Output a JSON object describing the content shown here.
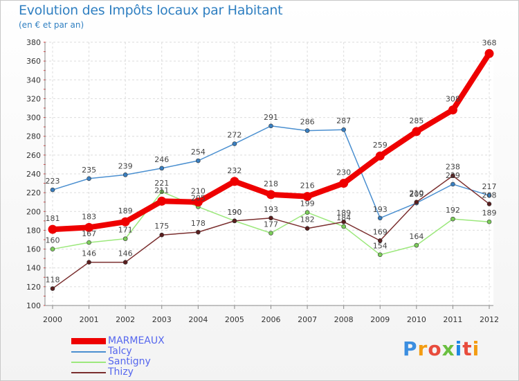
{
  "chart_data": {
    "type": "line",
    "title": "Evolution des Impôts locaux par Habitant",
    "subtitle": "(en € et par an)",
    "categories": [
      "2000",
      "2001",
      "2002",
      "2003",
      "2004",
      "2005",
      "2006",
      "2007",
      "2008",
      "2009",
      "2010",
      "2011",
      "2012"
    ],
    "ylim": [
      100,
      380
    ],
    "yticks": [
      100,
      120,
      140,
      160,
      180,
      200,
      220,
      240,
      260,
      280,
      300,
      320,
      340,
      360,
      380
    ],
    "grid": true,
    "legend_position": "bottom-left",
    "series": [
      {
        "name": "Talcy",
        "color": "#4a8fd0",
        "marker": "#3a7fc0",
        "values": [
          223,
          235,
          239,
          246,
          254,
          272,
          291,
          286,
          287,
          193,
          209,
          229,
          217
        ]
      },
      {
        "name": "Santigny",
        "color": "#9ce87c",
        "marker": "#7ccd5a",
        "values": [
          160,
          167,
          171,
          221,
          205,
          190,
          177,
          199,
          184,
          154,
          164,
          192,
          189
        ]
      },
      {
        "name": "Thizy",
        "color": "#7a2e2e",
        "marker": "#5a1e1e",
        "values": [
          118,
          146,
          146,
          175,
          178,
          190,
          193,
          182,
          189,
          169,
          210,
          238,
          208
        ]
      },
      {
        "name": "MARMEAUX",
        "color": "#ee0000",
        "marker": "#ee0000",
        "values": [
          181,
          183,
          189,
          211,
          210,
          232,
          218,
          216,
          230,
          259,
          285,
          308,
          368
        ]
      }
    ],
    "legend_order": [
      "MARMEAUX",
      "Talcy",
      "Santigny",
      "Thizy"
    ]
  },
  "brand": {
    "logo_text": "Proxiti",
    "logo_colors": [
      "#3b8ee0",
      "#f39c12",
      "#e84c3d",
      "#6abf40",
      "#1e88e5",
      "#e84c3d",
      "#f39c12"
    ]
  }
}
